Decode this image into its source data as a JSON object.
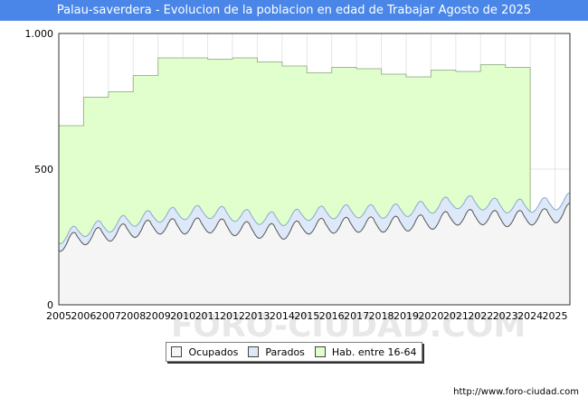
{
  "title": "Palau-saverdera - Evolucion de la poblacion en edad de Trabajar Agosto de 2025",
  "source": "http://www.foro-ciudad.com",
  "watermark": "FORO-CIUDAD.COM",
  "colors": {
    "title_bg": "#4a86e8",
    "hab_fill": "#e0ffcc",
    "hab_line": "#a0b890",
    "parados_fill": "#dde9f8",
    "parados_line": "#8aa8cc",
    "ocupados_fill": "#f5f5f5",
    "ocupados_line": "#555555"
  },
  "chart_data": {
    "type": "area",
    "title": "Palau-saverdera - Evolucion de la poblacion en edad de Trabajar Agosto de 2025",
    "xlim": [
      2005,
      2025.6
    ],
    "ylim": [
      0,
      1000
    ],
    "y_ticks": [
      0,
      500,
      1000
    ],
    "y_tick_labels": [
      "0",
      "500",
      "1.000"
    ],
    "x_tick_labels": [
      "2005",
      "2006",
      "2007",
      "2008",
      "2009",
      "2010",
      "2011",
      "2012",
      "2013",
      "2014",
      "2015",
      "2016",
      "2017",
      "2018",
      "2019",
      "2020",
      "2021",
      "2022",
      "2023",
      "2024",
      "2025"
    ],
    "legend": [
      "Ocupados",
      "Parados",
      "Hab. entre 16-64"
    ],
    "legend_position": "bottom-center",
    "series": [
      {
        "name": "Hab. entre 16-64",
        "kind": "annual-step",
        "years": [
          2005,
          2006,
          2007,
          2008,
          2009,
          2010,
          2011,
          2012,
          2013,
          2014,
          2015,
          2016,
          2017,
          2018,
          2019,
          2020,
          2021,
          2022,
          2023
        ],
        "values": [
          660,
          765,
          785,
          845,
          910,
          910,
          905,
          910,
          895,
          880,
          855,
          875,
          870,
          850,
          840,
          865,
          860,
          885,
          875
        ]
      },
      {
        "name": "Parados",
        "kind": "monthly-total-active",
        "start": 2005.0,
        "step": 0.0833,
        "annual_base": [
          245,
          272,
          288,
          310,
          325,
          335,
          340,
          330,
          318,
          312,
          332,
          338,
          342,
          340,
          346,
          358,
          376,
          372,
          360,
          362,
          370,
          395
        ],
        "seasonal_amp": 22
      },
      {
        "name": "Ocupados",
        "kind": "monthly",
        "start": 2005.0,
        "step": 0.0833,
        "annual_base": [
          220,
          245,
          258,
          272,
          285,
          285,
          290,
          280,
          270,
          265,
          285,
          288,
          292,
          292,
          296,
          302,
          318,
          320,
          312,
          318,
          325,
          355
        ],
        "seasonal_amp": 25
      }
    ]
  }
}
